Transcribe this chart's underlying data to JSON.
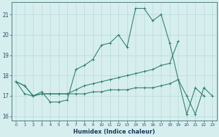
{
  "xlabel": "Humidex (Indice chaleur)",
  "x": [
    0,
    1,
    2,
    3,
    4,
    5,
    6,
    7,
    8,
    9,
    10,
    11,
    12,
    13,
    14,
    15,
    16,
    17,
    18,
    19,
    20,
    21,
    22,
    23
  ],
  "series": [
    [
      17.7,
      17.5,
      17.0,
      17.2,
      16.7,
      16.7,
      16.8,
      18.3,
      18.5,
      18.8,
      19.5,
      19.6,
      20.0,
      19.4,
      21.3,
      21.3,
      20.7,
      21.0,
      19.6,
      17.8,
      16.1,
      17.4,
      17.0,
      null
    ],
    [
      17.7,
      17.5,
      17.0,
      17.1,
      17.1,
      17.1,
      17.1,
      17.3,
      17.5,
      17.6,
      17.7,
      17.8,
      17.9,
      18.0,
      18.1,
      18.2,
      18.3,
      18.5,
      18.6,
      19.7,
      null,
      null,
      null,
      null
    ],
    [
      17.7,
      17.1,
      17.0,
      17.1,
      17.1,
      17.1,
      17.1,
      17.1,
      17.1,
      17.2,
      17.2,
      17.3,
      17.3,
      17.3,
      17.4,
      17.4,
      17.4,
      17.5,
      17.6,
      17.8,
      17.0,
      16.1,
      17.4,
      17.0
    ]
  ],
  "line_color": "#2e7d6e",
  "bg_color": "#d6eeee",
  "grid_color": "#b8d8d8",
  "xlim": [
    -0.5,
    23.5
  ],
  "ylim": [
    15.8,
    21.6
  ],
  "yticks": [
    16,
    17,
    18,
    19,
    20,
    21
  ],
  "xticks": [
    0,
    1,
    2,
    3,
    4,
    5,
    6,
    7,
    8,
    9,
    10,
    11,
    12,
    13,
    14,
    15,
    16,
    17,
    18,
    19,
    20,
    21,
    22,
    23
  ]
}
